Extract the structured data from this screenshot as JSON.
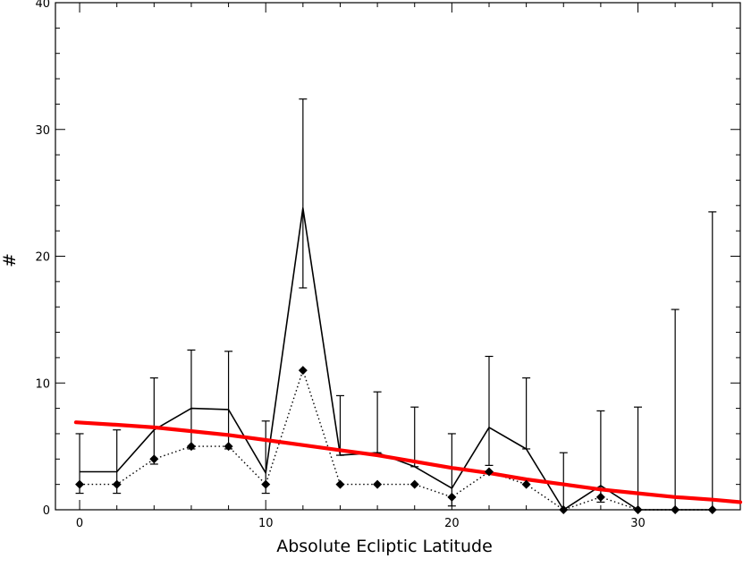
{
  "chart_data": {
    "type": "line",
    "title": "",
    "xlabel": "Absolute Ecliptic Latitude",
    "ylabel": "#",
    "xlim": [
      -1.3,
      35.5
    ],
    "ylim": [
      0,
      40
    ],
    "xticks": [
      0,
      10,
      20,
      30
    ],
    "xtick_labels": [
      "0",
      "10",
      "20",
      "30"
    ],
    "yticks": [
      0,
      10,
      20,
      30,
      40
    ],
    "ytick_labels": [
      "0",
      "10",
      "20",
      "30",
      "40"
    ],
    "grid": false,
    "legend": "none",
    "series": [
      {
        "style": "solid",
        "x": [
          0,
          2,
          4,
          6,
          8,
          10,
          12,
          14,
          16,
          18,
          20,
          22,
          24,
          26,
          28,
          30,
          32,
          34
        ],
        "y": [
          3.0,
          3.0,
          6.3,
          8.0,
          7.9,
          2.9,
          23.8,
          4.3,
          4.5,
          3.4,
          1.7,
          6.5,
          4.8,
          0.0,
          1.9,
          0.0,
          0.0,
          0.0
        ]
      },
      {
        "style": "dotted",
        "marker": "diamond",
        "x": [
          0,
          2,
          4,
          6,
          8,
          10,
          12,
          14,
          16,
          18,
          20,
          22,
          24,
          26,
          28,
          30,
          32,
          34
        ],
        "y": [
          2,
          2,
          4,
          5,
          5,
          2,
          11,
          2,
          2,
          2,
          1,
          3,
          2,
          0,
          1,
          0,
          0,
          0
        ]
      },
      {
        "style": "thick",
        "color": "#ff0000",
        "x": [
          -0.2,
          2,
          4,
          6,
          8,
          10,
          12,
          14,
          16,
          18,
          20,
          22,
          24,
          26,
          28,
          30,
          32,
          34,
          35.5
        ],
        "y": [
          6.9,
          6.7,
          6.5,
          6.2,
          5.9,
          5.5,
          5.1,
          4.7,
          4.3,
          3.8,
          3.3,
          2.9,
          2.4,
          2.0,
          1.6,
          1.3,
          1.0,
          0.8,
          0.6
        ]
      }
    ],
    "error_bars": {
      "x": [
        0,
        2,
        4,
        6,
        8,
        10,
        12,
        14,
        16,
        18,
        20,
        22,
        24,
        26,
        28,
        30,
        32,
        34
      ],
      "lower": [
        1.3,
        1.3,
        3.6,
        4.8,
        4.8,
        1.3,
        17.5,
        4.3,
        4.5,
        3.4,
        0.3,
        3.5,
        4.8,
        0.0,
        0.6,
        0.0,
        0.0,
        0.0
      ],
      "upper": [
        6.0,
        6.3,
        10.4,
        12.6,
        12.5,
        7.0,
        32.4,
        9.0,
        9.3,
        8.1,
        6.0,
        12.1,
        10.4,
        4.5,
        7.8,
        8.1,
        15.8,
        23.5
      ]
    }
  }
}
